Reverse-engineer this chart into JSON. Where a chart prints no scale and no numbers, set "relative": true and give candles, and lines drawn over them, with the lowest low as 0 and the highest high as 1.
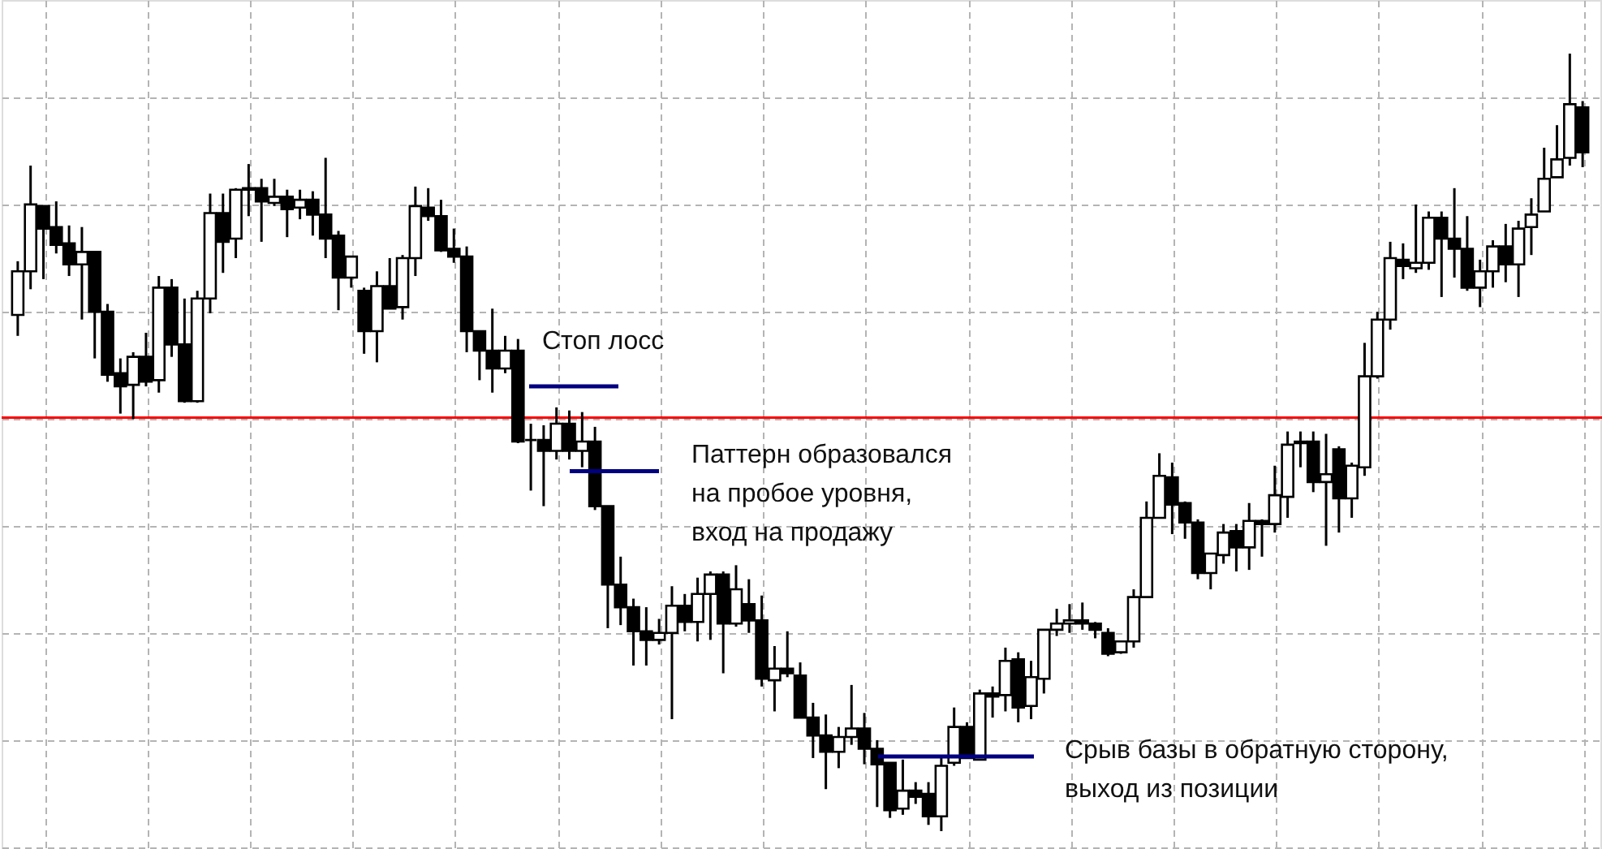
{
  "chart_data": {
    "type": "candlestick",
    "relative": true,
    "grid": true,
    "categories": [
      null,
      null,
      null,
      null,
      null,
      null,
      null,
      null,
      null,
      null,
      null,
      null,
      null,
      null,
      null,
      null,
      null,
      null,
      null,
      null,
      null,
      null,
      null,
      null,
      null,
      null,
      null,
      null,
      null,
      null,
      null,
      null,
      null,
      null,
      null,
      null,
      null,
      null,
      null,
      null,
      null,
      null,
      null,
      null,
      null,
      null,
      null,
      null,
      null,
      null,
      null,
      null,
      null,
      null,
      null,
      null,
      null,
      null,
      null,
      null,
      null,
      null,
      null,
      null,
      null,
      null,
      null,
      null,
      null,
      null,
      null,
      null,
      null,
      null,
      null,
      null,
      null,
      null,
      null,
      null,
      null,
      null,
      null,
      null,
      null,
      null,
      null,
      null,
      null,
      null,
      null,
      null,
      null,
      null,
      null,
      null,
      null,
      null,
      null,
      null,
      null,
      null,
      null,
      null,
      null,
      null,
      null,
      null,
      null,
      null,
      null,
      null,
      null,
      null,
      null,
      null,
      null,
      null,
      null,
      null,
      null,
      null,
      null
    ],
    "ohlc": [
      [
        0.664,
        0.733,
        0.637,
        0.72
      ],
      [
        0.72,
        0.856,
        0.697,
        0.806
      ],
      [
        0.804,
        0.804,
        0.71,
        0.775
      ],
      [
        0.777,
        0.81,
        0.743,
        0.754
      ],
      [
        0.756,
        0.779,
        0.714,
        0.729
      ],
      [
        0.729,
        0.777,
        0.658,
        0.745
      ],
      [
        0.745,
        0.745,
        0.608,
        0.668
      ],
      [
        0.668,
        0.678,
        0.578,
        0.587
      ],
      [
        0.589,
        0.608,
        0.537,
        0.572
      ],
      [
        0.574,
        0.616,
        0.53,
        0.61
      ],
      [
        0.61,
        0.641,
        0.572,
        0.578
      ],
      [
        0.58,
        0.714,
        0.564,
        0.699
      ],
      [
        0.699,
        0.71,
        0.61,
        0.626
      ],
      [
        0.626,
        0.685,
        0.551,
        0.553
      ],
      [
        0.553,
        0.695,
        0.551,
        0.685
      ],
      [
        0.685,
        0.82,
        0.666,
        0.795
      ],
      [
        0.795,
        0.82,
        0.718,
        0.758
      ],
      [
        0.762,
        0.827,
        0.737,
        0.825
      ],
      [
        0.827,
        0.858,
        0.791,
        0.825
      ],
      [
        0.827,
        0.839,
        0.758,
        0.81
      ],
      [
        0.808,
        0.839,
        0.804,
        0.816
      ],
      [
        0.816,
        0.825,
        0.764,
        0.8
      ],
      [
        0.802,
        0.825,
        0.787,
        0.812
      ],
      [
        0.812,
        0.823,
        0.766,
        0.793
      ],
      [
        0.793,
        0.866,
        0.737,
        0.762
      ],
      [
        0.766,
        0.772,
        0.67,
        0.712
      ],
      [
        0.712,
        0.739,
        0.699,
        0.739
      ],
      [
        0.695,
        0.699,
        0.614,
        0.643
      ],
      [
        0.643,
        0.72,
        0.603,
        0.701
      ],
      [
        0.701,
        0.737,
        0.672,
        0.672
      ],
      [
        0.674,
        0.741,
        0.658,
        0.737
      ],
      [
        0.737,
        0.829,
        0.714,
        0.804
      ],
      [
        0.802,
        0.827,
        0.785,
        0.791
      ],
      [
        0.791,
        0.812,
        0.745,
        0.747
      ],
      [
        0.749,
        0.775,
        0.731,
        0.739
      ],
      [
        0.739,
        0.752,
        0.616,
        0.643
      ],
      [
        0.643,
        0.643,
        0.58,
        0.618
      ],
      [
        0.618,
        0.672,
        0.564,
        0.595
      ],
      [
        0.595,
        0.637,
        0.589,
        0.618
      ],
      [
        0.618,
        0.633,
        0.499,
        0.501
      ],
      [
        0.503,
        0.524,
        0.438,
        0.503
      ],
      [
        0.503,
        0.522,
        0.418,
        0.489
      ],
      [
        0.489,
        0.545,
        0.478,
        0.524
      ],
      [
        0.524,
        0.541,
        0.478,
        0.489
      ],
      [
        0.489,
        0.539,
        0.468,
        0.501
      ],
      [
        0.501,
        0.52,
        0.413,
        0.418
      ],
      [
        0.418,
        0.418,
        0.261,
        0.317
      ],
      [
        0.317,
        0.353,
        0.265,
        0.288
      ],
      [
        0.288,
        0.299,
        0.213,
        0.257
      ],
      [
        0.257,
        0.288,
        0.213,
        0.246
      ],
      [
        0.246,
        0.273,
        0.24,
        0.255
      ],
      [
        0.255,
        0.315,
        0.144,
        0.29
      ],
      [
        0.29,
        0.305,
        0.257,
        0.269
      ],
      [
        0.269,
        0.326,
        0.244,
        0.305
      ],
      [
        0.305,
        0.334,
        0.246,
        0.33
      ],
      [
        0.33,
        0.334,
        0.203,
        0.267
      ],
      [
        0.267,
        0.342,
        0.263,
        0.311
      ],
      [
        0.292,
        0.324,
        0.255,
        0.271
      ],
      [
        0.271,
        0.303,
        0.186,
        0.196
      ],
      [
        0.194,
        0.238,
        0.154,
        0.209
      ],
      [
        0.209,
        0.257,
        0.198,
        0.203
      ],
      [
        0.2,
        0.217,
        0.146,
        0.146
      ],
      [
        0.146,
        0.165,
        0.094,
        0.123
      ],
      [
        0.123,
        0.15,
        0.054,
        0.102
      ],
      [
        0.102,
        0.134,
        0.081,
        0.121
      ],
      [
        0.121,
        0.188,
        0.111,
        0.132
      ],
      [
        0.132,
        0.152,
        0.086,
        0.106
      ],
      [
        0.106,
        0.117,
        0.031,
        0.086
      ],
      [
        0.088,
        0.088,
        0.017,
        0.027
      ],
      [
        0.029,
        0.092,
        0.021,
        0.052
      ],
      [
        0.052,
        0.063,
        0.035,
        0.044
      ],
      [
        0.048,
        0.063,
        0.008,
        0.019
      ],
      [
        0.019,
        0.098,
        0,
        0.084
      ],
      [
        0.088,
        0.159,
        0.084,
        0.134
      ],
      [
        0.134,
        0.14,
        0.094,
        0.094
      ],
      [
        0.092,
        0.182,
        0.092,
        0.177
      ],
      [
        0.177,
        0.186,
        0.146,
        0.173
      ],
      [
        0.175,
        0.236,
        0.154,
        0.219
      ],
      [
        0.221,
        0.23,
        0.14,
        0.159
      ],
      [
        0.161,
        0.219,
        0.144,
        0.198
      ],
      [
        0.196,
        0.259,
        0.177,
        0.259
      ],
      [
        0.259,
        0.286,
        0.251,
        0.267
      ],
      [
        0.267,
        0.292,
        0.255,
        0.271
      ],
      [
        0.271,
        0.294,
        0.259,
        0.267
      ],
      [
        0.267,
        0.269,
        0.248,
        0.259
      ],
      [
        0.255,
        0.261,
        0.225,
        0.228
      ],
      [
        0.23,
        0.244,
        0.228,
        0.244
      ],
      [
        0.244,
        0.311,
        0.236,
        0.301
      ],
      [
        0.301,
        0.424,
        0.301,
        0.403
      ],
      [
        0.403,
        0.486,
        0.403,
        0.457
      ],
      [
        0.455,
        0.474,
        0.382,
        0.42
      ],
      [
        0.422,
        0.424,
        0.376,
        0.397
      ],
      [
        0.397,
        0.401,
        0.324,
        0.332
      ],
      [
        0.332,
        0.357,
        0.311,
        0.357
      ],
      [
        0.355,
        0.395,
        0.344,
        0.384
      ],
      [
        0.386,
        0.395,
        0.334,
        0.365
      ],
      [
        0.365,
        0.422,
        0.336,
        0.399
      ],
      [
        0.399,
        0.401,
        0.353,
        0.395
      ],
      [
        0.395,
        0.47,
        0.384,
        0.432
      ],
      [
        0.43,
        0.514,
        0.403,
        0.497
      ],
      [
        0.501,
        0.514,
        0.468,
        0.499
      ],
      [
        0.501,
        0.514,
        0.436,
        0.449
      ],
      [
        0.449,
        0.511,
        0.367,
        0.459
      ],
      [
        0.491,
        0.495,
        0.384,
        0.428
      ],
      [
        0.428,
        0.474,
        0.403,
        0.47
      ],
      [
        0.468,
        0.628,
        0.457,
        0.585
      ],
      [
        0.585,
        0.668,
        0.582,
        0.658
      ],
      [
        0.658,
        0.758,
        0.645,
        0.737
      ],
      [
        0.735,
        0.756,
        0.71,
        0.727
      ],
      [
        0.724,
        0.806,
        0.718,
        0.731
      ],
      [
        0.731,
        0.797,
        0.722,
        0.789
      ],
      [
        0.789,
        0.797,
        0.687,
        0.762
      ],
      [
        0.762,
        0.827,
        0.712,
        0.749
      ],
      [
        0.749,
        0.791,
        0.695,
        0.699
      ],
      [
        0.699,
        0.735,
        0.674,
        0.72
      ],
      [
        0.72,
        0.76,
        0.699,
        0.752
      ],
      [
        0.752,
        0.781,
        0.706,
        0.729
      ],
      [
        0.729,
        0.785,
        0.687,
        0.775
      ],
      [
        0.777,
        0.814,
        0.741,
        0.793
      ],
      [
        0.797,
        0.879,
        0.797,
        0.839
      ],
      [
        0.841,
        0.908,
        0.841,
        0.864
      ],
      [
        0.866,
        1,
        0.856,
        0.935
      ],
      [
        0.931,
        0.939,
        0.854,
        0.873
      ]
    ],
    "ref_lines": [
      {
        "axis": "y",
        "value": 0.532,
        "color": "#ff0000"
      },
      {
        "axis": "y",
        "value": 0.572,
        "label": "Стоп лосс",
        "color": "#000080"
      },
      {
        "axis": "y",
        "value": 0.463,
        "label": "Паттерн образовался\nна пробое уровня,\nвход на продажу",
        "color": "#000080"
      },
      {
        "axis": "y",
        "value": 0.096,
        "label": "Срыв базы в обратную сторону,\nвыход из позиции",
        "color": "#000080"
      }
    ]
  }
}
